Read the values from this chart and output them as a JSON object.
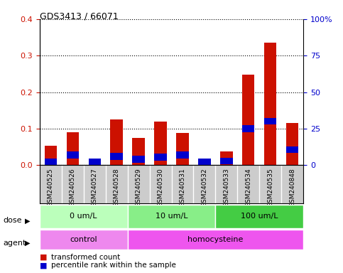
{
  "title": "GDS3413 / 66071",
  "samples": [
    "GSM240525",
    "GSM240526",
    "GSM240527",
    "GSM240528",
    "GSM240529",
    "GSM240530",
    "GSM240531",
    "GSM240532",
    "GSM240533",
    "GSM240534",
    "GSM240535",
    "GSM240848"
  ],
  "red_values": [
    0.053,
    0.09,
    0.008,
    0.125,
    0.075,
    0.12,
    0.088,
    0.018,
    0.038,
    0.248,
    0.335,
    0.115
  ],
  "blue_values_pct": [
    2.0,
    7.0,
    1.5,
    6.0,
    4.0,
    5.5,
    7.0,
    2.5,
    3.0,
    25.0,
    30.0,
    10.5
  ],
  "ylim_left": [
    0,
    0.4
  ],
  "ylim_right": [
    0,
    100
  ],
  "yticks_left": [
    0.0,
    0.1,
    0.2,
    0.3,
    0.4
  ],
  "yticks_right": [
    0,
    25,
    50,
    75,
    100
  ],
  "ytick_labels_right": [
    "0",
    "25",
    "50",
    "75",
    "100%"
  ],
  "dose_groups": [
    {
      "label": "0 um/L",
      "start": 0,
      "end": 4
    },
    {
      "label": "10 um/L",
      "start": 4,
      "end": 8
    },
    {
      "label": "100 um/L",
      "start": 8,
      "end": 12
    }
  ],
  "dose_colors": [
    "#bbffbb",
    "#88ee88",
    "#44cc44"
  ],
  "agent_groups": [
    {
      "label": "control",
      "start": 0,
      "end": 4
    },
    {
      "label": "homocysteine",
      "start": 4,
      "end": 12
    }
  ],
  "agent_colors": [
    "#ee88ee",
    "#ee55ee"
  ],
  "legend_red": "transformed count",
  "legend_blue": "percentile rank within the sample",
  "bar_width": 0.55,
  "red_color": "#cc1100",
  "blue_color": "#0000cc",
  "dose_label": "dose",
  "agent_label": "agent",
  "sample_box_color": "#cccccc",
  "sample_box_border": "#888888"
}
